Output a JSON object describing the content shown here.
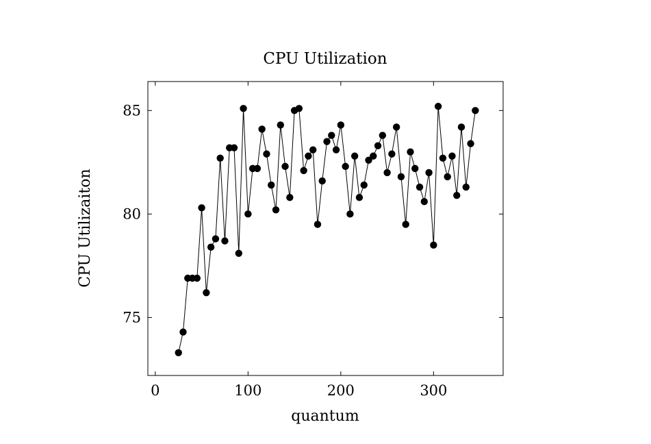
{
  "chart_data": {
    "type": "line",
    "title": "CPU Utilization",
    "xlabel": "quantum",
    "ylabel": "CPU Utilizaiton",
    "xlim": [
      -8,
      375
    ],
    "ylim": [
      72.2,
      86.4
    ],
    "xticks": [
      0,
      100,
      200,
      300
    ],
    "xtick_labels": [
      "0",
      "100",
      "200",
      "300"
    ],
    "yticks": [
      75,
      80,
      85
    ],
    "ytick_labels": [
      "75",
      "80",
      "85"
    ],
    "grid": false,
    "legend": "none",
    "line_color": "#000000",
    "marker": "filled-circle",
    "series": [
      {
        "x": [
          25,
          30,
          35,
          40,
          45,
          50,
          55,
          60,
          65,
          70,
          75,
          80,
          85,
          90,
          95,
          100,
          105,
          110,
          115,
          120,
          125,
          130,
          135,
          140,
          145,
          150,
          155,
          160,
          165,
          170,
          175,
          180,
          185,
          190,
          195,
          200,
          205,
          210,
          215,
          220,
          225,
          230,
          235,
          240,
          245,
          250,
          255,
          260,
          265,
          270,
          275,
          280,
          285,
          290,
          295,
          300,
          305,
          310,
          315,
          320,
          325,
          330,
          335,
          340,
          345
        ],
        "y": [
          73.3,
          74.3,
          76.9,
          76.9,
          76.9,
          80.3,
          76.2,
          78.4,
          78.8,
          82.7,
          78.7,
          83.2,
          83.2,
          78.1,
          85.1,
          80.0,
          82.2,
          82.2,
          84.1,
          82.9,
          81.4,
          80.2,
          84.3,
          82.3,
          80.8,
          85.0,
          85.1,
          82.1,
          82.8,
          83.1,
          79.5,
          81.6,
          83.5,
          83.8,
          83.1,
          84.3,
          82.3,
          80.0,
          82.8,
          80.8,
          81.4,
          82.6,
          82.8,
          83.3,
          83.8,
          82.0,
          82.9,
          84.2,
          81.8,
          79.5,
          83.0,
          82.2,
          81.3,
          80.6,
          82.0,
          78.5,
          85.2,
          82.7,
          81.8,
          82.8,
          80.9,
          84.2,
          81.3,
          83.4,
          85.0
        ]
      }
    ]
  }
}
